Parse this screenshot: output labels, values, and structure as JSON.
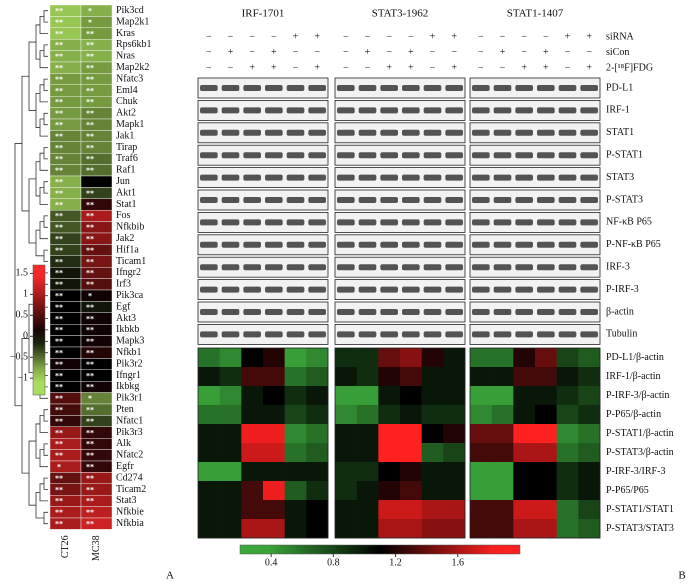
{
  "panel_a": {
    "label": "A",
    "columns": [
      "CT26",
      "MC38"
    ],
    "colorbar": {
      "lim": [
        -1.4,
        1.7
      ],
      "ticks": [
        1.5,
        1,
        0.5,
        0,
        {
          "value": -0.5,
          "label": "−0.5"
        },
        {
          "value": -1,
          "label": "−1"
        }
      ]
    },
    "genes": [
      {
        "name": "Pik3cd",
        "values": [
          -0.9,
          -0.8
        ],
        "stars": [
          "**",
          "*"
        ]
      },
      {
        "name": "Map2k1",
        "values": [
          -0.9,
          -0.7
        ],
        "stars": [
          "**",
          "*"
        ]
      },
      {
        "name": "Kras",
        "values": [
          -0.9,
          -0.7
        ],
        "stars": [
          "**",
          "**"
        ]
      },
      {
        "name": "Rps6kb1",
        "values": [
          -0.8,
          -0.8
        ],
        "stars": [
          "**",
          "**"
        ]
      },
      {
        "name": "Nras",
        "values": [
          -0.8,
          -0.8
        ],
        "stars": [
          "**",
          "**"
        ]
      },
      {
        "name": "Map2k2",
        "values": [
          -0.8,
          -0.7
        ],
        "stars": [
          "**",
          "**"
        ]
      },
      {
        "name": "Nfatc3",
        "values": [
          -0.7,
          -0.7
        ],
        "stars": [
          "**",
          "**"
        ]
      },
      {
        "name": "Eml4",
        "values": [
          -0.7,
          -0.7
        ],
        "stars": [
          "**",
          "**"
        ]
      },
      {
        "name": "Chuk",
        "values": [
          -0.7,
          -0.7
        ],
        "stars": [
          "**",
          "**"
        ]
      },
      {
        "name": "Akt2",
        "values": [
          -0.7,
          -0.6
        ],
        "stars": [
          "**",
          "**"
        ]
      },
      {
        "name": "Mapk1",
        "values": [
          -0.7,
          -0.6
        ],
        "stars": [
          "**",
          "**"
        ]
      },
      {
        "name": "Jak1",
        "values": [
          -0.6,
          -0.6
        ],
        "stars": [
          "**",
          "**"
        ]
      },
      {
        "name": "Tirap",
        "values": [
          -0.6,
          -0.6
        ],
        "stars": [
          "**",
          "**"
        ]
      },
      {
        "name": "Traf6",
        "values": [
          -0.6,
          -0.5
        ],
        "stars": [
          "**",
          "**"
        ]
      },
      {
        "name": "Raf1",
        "values": [
          -0.6,
          -0.5
        ],
        "stars": [
          "**",
          "**"
        ]
      },
      {
        "name": "Jun",
        "values": [
          -0.8,
          0
        ],
        "stars": [
          "**",
          null
        ]
      },
      {
        "name": "Akt1",
        "values": [
          -0.8,
          -0.3
        ],
        "stars": [
          "**",
          "**"
        ]
      },
      {
        "name": "Stat1",
        "values": [
          -0.8,
          0.3
        ],
        "stars": [
          "**",
          "**"
        ]
      },
      {
        "name": "Fos",
        "values": [
          -0.4,
          1.0
        ],
        "stars": [
          "**",
          "**"
        ]
      },
      {
        "name": "Nfkbib",
        "values": [
          -0.4,
          0.8
        ],
        "stars": [
          "**",
          "**"
        ]
      },
      {
        "name": "Jak2",
        "values": [
          -0.3,
          0.8
        ],
        "stars": [
          "**",
          "**"
        ]
      },
      {
        "name": "Hif1a",
        "values": [
          -0.3,
          0.6
        ],
        "stars": [
          "**",
          "**"
        ]
      },
      {
        "name": "Ticam1",
        "values": [
          -0.2,
          0.7
        ],
        "stars": [
          "**",
          "**"
        ]
      },
      {
        "name": "Ifngr2",
        "values": [
          -0.1,
          0.6
        ],
        "stars": [
          "**",
          "**"
        ]
      },
      {
        "name": "Irf3",
        "values": [
          -0.1,
          0.5
        ],
        "stars": [
          "**",
          "**"
        ]
      },
      {
        "name": "Pik3ca",
        "values": [
          0,
          0.1
        ],
        "stars": [
          "**",
          "*"
        ]
      },
      {
        "name": "Egf",
        "values": [
          0,
          -0.1
        ],
        "stars": [
          "**",
          "**"
        ]
      },
      {
        "name": "Akt3",
        "values": [
          0,
          0.1
        ],
        "stars": [
          "**",
          "**"
        ]
      },
      {
        "name": "Ikbkb",
        "values": [
          0,
          0.1
        ],
        "stars": [
          "**",
          "**"
        ]
      },
      {
        "name": "Mapk3",
        "values": [
          0,
          0.1
        ],
        "stars": [
          "**",
          "**"
        ]
      },
      {
        "name": "Nfkb1",
        "values": [
          0,
          0.2
        ],
        "stars": [
          "**",
          "**"
        ]
      },
      {
        "name": "Pik3r2",
        "values": [
          0.1,
          0
        ],
        "stars": [
          "**",
          "**"
        ]
      },
      {
        "name": "Ifngr1",
        "values": [
          0,
          0
        ],
        "stars": [
          "**",
          "**"
        ]
      },
      {
        "name": "Ikbkg",
        "values": [
          0,
          0.1
        ],
        "stars": [
          "**",
          "**"
        ]
      },
      {
        "name": "Pik3r1",
        "values": [
          0.5,
          -0.6
        ],
        "stars": [
          "**",
          "*"
        ]
      },
      {
        "name": "Pten",
        "values": [
          0.4,
          -0.5
        ],
        "stars": [
          "**",
          "**"
        ]
      },
      {
        "name": "Nfatc1",
        "values": [
          0.3,
          -0.3
        ],
        "stars": [
          "**",
          "**"
        ]
      },
      {
        "name": "Pik3r3",
        "values": [
          0.9,
          0.3
        ],
        "stars": [
          "**",
          "**"
        ]
      },
      {
        "name": "Alk",
        "values": [
          1.0,
          0.3
        ],
        "stars": [
          "**",
          "**"
        ]
      },
      {
        "name": "Nfatc2",
        "values": [
          1.0,
          0.3
        ],
        "stars": [
          "**",
          "**"
        ]
      },
      {
        "name": "Egfr",
        "values": [
          1.0,
          0.3
        ],
        "stars": [
          "*",
          "**"
        ]
      },
      {
        "name": "Cd274",
        "values": [
          0.6,
          0.9
        ],
        "stars": [
          "**",
          "**"
        ]
      },
      {
        "name": "Ticam2",
        "values": [
          0.7,
          0.9
        ],
        "stars": [
          "**",
          "**"
        ]
      },
      {
        "name": "Stat3",
        "values": [
          0.9,
          1.0
        ],
        "stars": [
          "**",
          "**"
        ]
      },
      {
        "name": "Nfkbie",
        "values": [
          1.0,
          1.1
        ],
        "stars": [
          "**",
          "**"
        ]
      },
      {
        "name": "Nfkbia",
        "values": [
          1.0,
          1.2
        ],
        "stars": [
          "**",
          "**"
        ]
      }
    ]
  },
  "panel_b": {
    "label": "B",
    "groups": [
      "IRF-1701",
      "STAT3-1962",
      "STAT1-1407"
    ],
    "treatments": [
      {
        "label": "siRNA",
        "signs": [
          [
            "−",
            "−",
            "−",
            "−",
            "+",
            "+"
          ],
          [
            "−",
            "−",
            "−",
            "−",
            "+",
            "+"
          ],
          [
            "−",
            "−",
            "−",
            "−",
            "+",
            "+"
          ]
        ]
      },
      {
        "label": "siCon",
        "signs": [
          [
            "−",
            "+",
            "−",
            "+",
            "−",
            "−"
          ],
          [
            "−",
            "+",
            "−",
            "+",
            "−",
            "−"
          ],
          [
            "−",
            "+",
            "−",
            "+",
            "−",
            "−"
          ]
        ]
      },
      {
        "label": "2-[¹⁸F]FDG",
        "signs": [
          [
            "−",
            "−",
            "+",
            "+",
            "−",
            "+"
          ],
          [
            "−",
            "−",
            "+",
            "+",
            "−",
            "+"
          ],
          [
            "−",
            "−",
            "+",
            "+",
            "−",
            "+"
          ]
        ]
      }
    ],
    "blots": [
      "PD-L1",
      "IRF-1",
      "STAT1",
      "P-STAT1",
      "STAT3",
      "P-STAT3",
      "NF-κB P65",
      "P-NF-κB P65",
      "IRF-3",
      "P-IRF-3",
      "β-actin",
      "Tubulin"
    ],
    "heatmap": {
      "rows": [
        "PD-L1/β-actin",
        "IRF-1/β-actin",
        "P-IRF-3/β-actin",
        "P-P65/β-actin",
        "P-STAT1/β-actin",
        "P-STAT3/β-actin",
        "P-IRF-3/IRF-3",
        "P-P65/P65",
        "P-STAT1/STAT1",
        "P-STAT3/STAT3"
      ],
      "values": [
        [
          0.6,
          0.5,
          1.1,
          1.2,
          0.4,
          0.5,
          0.9,
          0.9,
          1.4,
          1.5,
          1.2,
          1.0,
          0.6,
          0.6,
          1.2,
          1.4,
          0.8,
          0.7
        ],
        [
          1.0,
          0.9,
          1.3,
          1.3,
          0.6,
          0.7,
          1.0,
          0.9,
          1.2,
          1.3,
          1.0,
          1.0,
          1.0,
          1.0,
          1.3,
          1.3,
          1.0,
          0.9
        ],
        [
          0.4,
          0.5,
          1.0,
          1.1,
          0.9,
          1.0,
          0.4,
          0.4,
          1.0,
          1.1,
          1.0,
          1.0,
          0.4,
          0.4,
          1.0,
          1.0,
          0.9,
          0.8
        ],
        [
          0.6,
          0.6,
          1.0,
          1.0,
          0.8,
          0.9,
          0.5,
          0.6,
          0.9,
          1.0,
          0.9,
          0.9,
          0.5,
          0.6,
          1.0,
          1.1,
          0.8,
          0.9
        ],
        [
          1.0,
          1.0,
          1.8,
          1.8,
          0.5,
          0.6,
          1.0,
          1.0,
          2.0,
          2.0,
          1.1,
          1.2,
          1.4,
          1.4,
          1.9,
          1.9,
          0.5,
          0.6
        ],
        [
          1.0,
          1.0,
          1.7,
          1.7,
          0.6,
          0.7,
          1.0,
          1.0,
          2.0,
          2.0,
          0.7,
          0.8,
          1.3,
          1.3,
          1.6,
          1.6,
          0.6,
          0.7
        ],
        [
          0.4,
          0.4,
          1.0,
          1.0,
          1.0,
          1.0,
          0.9,
          0.9,
          1.1,
          1.2,
          1.0,
          1.0,
          0.4,
          0.4,
          1.1,
          1.1,
          0.9,
          1.0
        ],
        [
          1.0,
          1.0,
          1.3,
          1.8,
          0.7,
          0.9,
          0.9,
          1.0,
          1.2,
          1.3,
          1.0,
          1.0,
          0.4,
          0.4,
          1.1,
          1.1,
          0.9,
          1.0
        ],
        [
          1.0,
          1.0,
          1.3,
          1.3,
          1.0,
          1.1,
          1.0,
          1.0,
          1.7,
          1.7,
          1.6,
          1.6,
          1.3,
          1.3,
          1.7,
          1.7,
          0.6,
          0.8
        ],
        [
          1.0,
          1.0,
          1.6,
          1.6,
          1.0,
          1.1,
          1.0,
          1.0,
          1.6,
          1.6,
          1.5,
          1.5,
          1.3,
          1.3,
          1.6,
          1.6,
          0.6,
          0.7
        ]
      ],
      "colorbar": {
        "lim": [
          0.2,
          2.0
        ],
        "ticks": [
          0.4,
          0.8,
          1.2,
          1.6
        ]
      }
    }
  }
}
